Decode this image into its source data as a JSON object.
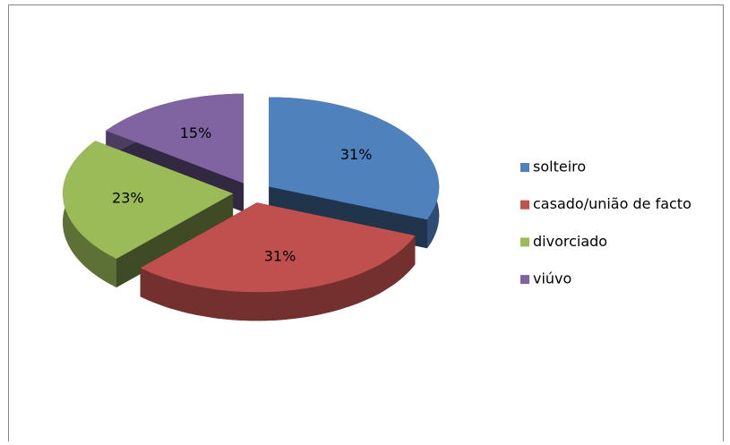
{
  "chart_data": {
    "type": "pie3d",
    "categories": [
      "solteiro",
      "casado/união de facto",
      "divorciado",
      "viúvo"
    ],
    "values": [
      31,
      31,
      23,
      15
    ],
    "value_labels": [
      "31%",
      "31%",
      "23%",
      "15%"
    ],
    "colors": [
      "#4f81bd",
      "#c0504d",
      "#9bbb59",
      "#8064a2"
    ],
    "legend": "right"
  }
}
